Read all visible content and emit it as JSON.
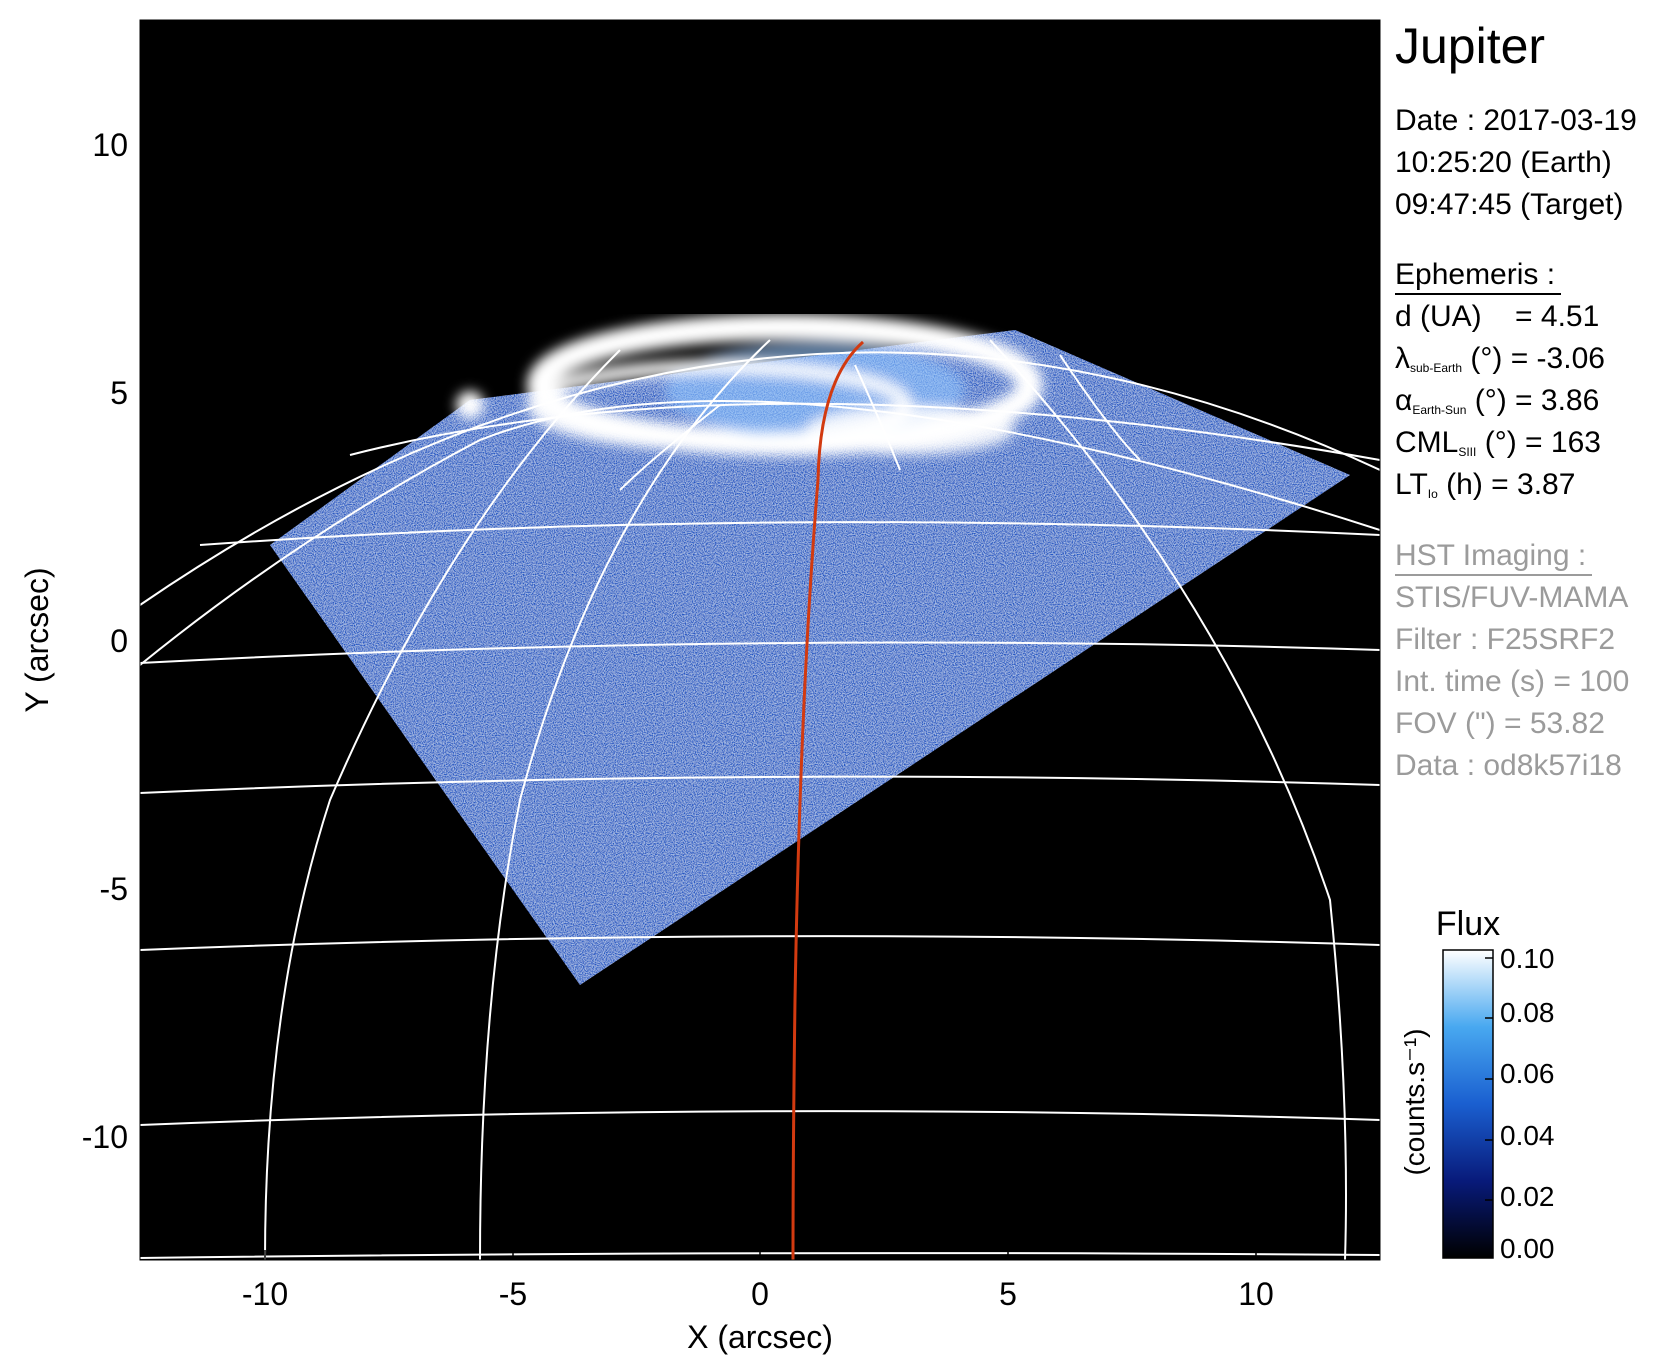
{
  "planet": "Jupiter",
  "date_lines": [
    "Date : 2017-03-19",
    "10:25:20 (Earth)",
    "09:47:45 (Target)"
  ],
  "ephemeris": {
    "heading": "Ephemeris :",
    "d": {
      "label": "d (UA)",
      "value": "= 4.51"
    },
    "lat": {
      "symbol": "λ",
      "sub": "sub-Earth",
      "unit": "(°)",
      "value": "= -3.06"
    },
    "phase": {
      "symbol": "α",
      "sub": "Earth-Sun",
      "unit": "(°)",
      "value": "= 3.86"
    },
    "cml": {
      "symbol": "CML",
      "sub": "SIII",
      "unit": "(°)",
      "value": "= 163"
    },
    "lt": {
      "symbol": "LT",
      "sub": "Io",
      "unit": "(h)",
      "value": "= 3.87"
    }
  },
  "hst": {
    "heading": "HST Imaging :",
    "lines": [
      "STIS/FUV-MAMA",
      "Filter : F25SRF2",
      "Int. time (s) = 100",
      "FOV (\") = 53.82",
      "Data : od8k57i18"
    ]
  },
  "chart_data": {
    "type": "heatmap",
    "xlabel": "X (arcsec)",
    "ylabel": "Y (arcsec)",
    "xlim": [
      -12.5,
      12.5
    ],
    "ylim": [
      -12.5,
      12.5
    ],
    "x_ticks": [
      -10,
      -5,
      0,
      5,
      10
    ],
    "y_ticks": [
      10,
      5,
      0,
      -5,
      -10
    ],
    "colorbar": {
      "title": "Flux",
      "unit_label": "(counts.s⁻¹)",
      "ticks": [
        "0.10",
        "0.08",
        "0.06",
        "0.04",
        "0.02",
        "0.00"
      ],
      "range": [
        0.0,
        0.1
      ]
    },
    "colors": {
      "background": "#000000",
      "low": "#0a1a6e",
      "mid": "#1e7fe0",
      "high": "#ffffff",
      "grid": "#ffffff",
      "meridian": "#d23a10"
    }
  }
}
